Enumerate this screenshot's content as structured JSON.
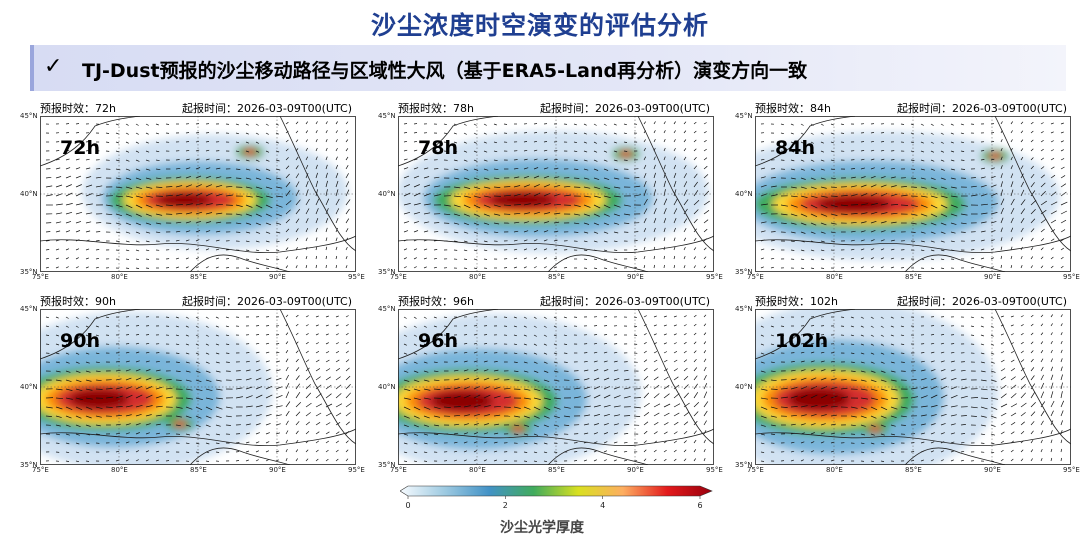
{
  "title": "沙尘浓度时空演变的评估分析",
  "banner": {
    "check": "✓",
    "text": "TJ-Dust预报的沙尘移动路径与区域性大风（基于ERA5-Land再分析）演变方向一致"
  },
  "common": {
    "lat_labels": [
      "45°N",
      "40°N",
      "35°N"
    ],
    "lon_labels": [
      "75°E",
      "80°E",
      "85°E",
      "90°E",
      "95°E"
    ]
  },
  "panels": [
    {
      "forecast_label": "预报时效：72h",
      "init_label": "起报时间：2026-03-09T00(UTC)",
      "tag": "72h"
    },
    {
      "forecast_label": "预报时效：78h",
      "init_label": "起报时间：2026-03-09T00(UTC)",
      "tag": "78h"
    },
    {
      "forecast_label": "预报时效：84h",
      "init_label": "起报时间：2026-03-09T00(UTC)",
      "tag": "84h"
    },
    {
      "forecast_label": "预报时效：90h",
      "init_label": "起报时间：2026-03-09T00(UTC)",
      "tag": "90h"
    },
    {
      "forecast_label": "预报时效：96h",
      "init_label": "起报时间：2026-03-09T00(UTC)",
      "tag": "96h"
    },
    {
      "forecast_label": "预报时效：102h",
      "init_label": "起报时间：2026-03-09T00(UTC)",
      "tag": "102h"
    }
  ],
  "colorbar": {
    "ticks": [
      "0",
      "2",
      "4",
      "6"
    ],
    "title": "沙尘光学厚度",
    "colors": [
      "#f7fbff",
      "#9ecae1",
      "#4292c6",
      "#41ab5d",
      "#d9e021",
      "#fdae61",
      "#e31a1c",
      "#99000d"
    ]
  }
}
